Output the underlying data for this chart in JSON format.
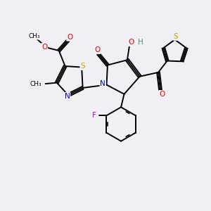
{
  "bg_color": "#f0f0f4",
  "atom_colors": {
    "S": "#c8a000",
    "N": "#0000cc",
    "O": "#ee0000",
    "F": "#cc00cc",
    "H": "#4a8a8a",
    "C": "#000000"
  },
  "lw": 1.4,
  "fs": 7.5
}
